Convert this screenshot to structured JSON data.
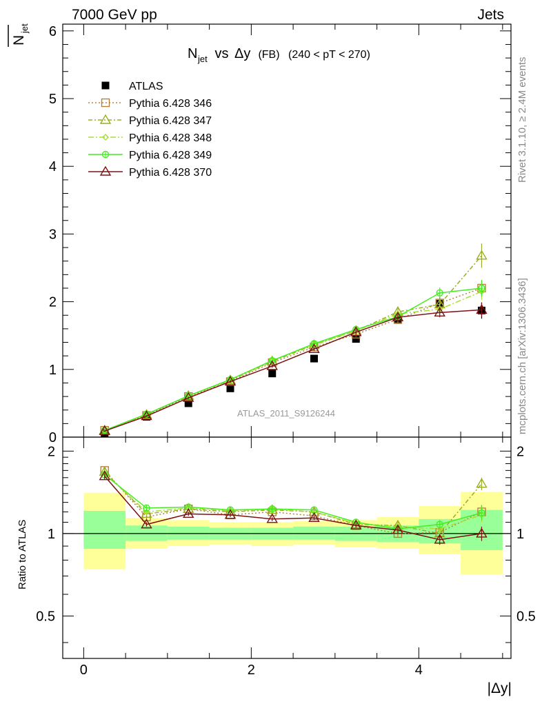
{
  "header": {
    "left": "7000 GeV pp",
    "right": "Jets"
  },
  "side_text": {
    "rivet": "Rivet 3.1.10, ≥ 2.4M events",
    "mcplots": "mcplots.cern.ch [arXiv:1306.3436]"
  },
  "colors": {
    "data": "#000000",
    "p346": "#b5803c",
    "p347": "#9aad22",
    "p348": "#a7e031",
    "p349": "#44ee22",
    "p370": "#7a1010",
    "band_outer": "#ffff99",
    "band_inner": "#99ff99"
  },
  "chart_data": [
    {
      "type": "line",
      "title": {
        "main": "N",
        "sub": "jet",
        "vs": " vs ",
        "delta": "Δy",
        "fb": " (FB) ",
        "cut": "(240 < pT < 270)"
      },
      "ylabel": {
        "main": "N",
        "sub": "jet"
      },
      "watermark": "ATLAS_2011_S9126244",
      "xlim": [
        -0.25,
        5.1
      ],
      "ylim": [
        0,
        6.1
      ],
      "yticks": [
        0,
        1,
        2,
        3,
        4,
        5,
        6
      ],
      "ytick_labels": [
        "0",
        "1",
        "2",
        "3",
        "4",
        "5",
        "6"
      ],
      "x": [
        0.25,
        0.75,
        1.25,
        1.75,
        2.25,
        2.75,
        3.25,
        3.75,
        4.25,
        4.75
      ],
      "data": {
        "name": "ATLAS",
        "values": [
          0.06,
          0.3,
          0.5,
          0.72,
          0.94,
          1.16,
          1.45,
          1.73,
          1.97,
          1.87
        ],
        "errors": [
          0.01,
          0.01,
          0.02,
          0.02,
          0.03,
          0.03,
          0.04,
          0.05,
          0.1,
          0.12
        ]
      },
      "series": [
        {
          "name": "Pythia 6.428 346",
          "key": "p346",
          "marker": "square",
          "dash": "2,3",
          "values": [
            0.1,
            0.32,
            0.6,
            0.82,
            1.1,
            1.33,
            1.52,
            1.74,
            1.98,
            2.2
          ],
          "errors": [
            0.005,
            0.01,
            0.015,
            0.02,
            0.025,
            0.03,
            0.04,
            0.05,
            0.08,
            0.12
          ]
        },
        {
          "name": "Pythia 6.428 347",
          "key": "p347",
          "marker": "triangle",
          "dash": "6,3,2,3",
          "values": [
            0.1,
            0.33,
            0.61,
            0.84,
            1.12,
            1.36,
            1.57,
            1.85,
            1.96,
            2.68
          ],
          "errors": [
            0.005,
            0.01,
            0.015,
            0.02,
            0.025,
            0.03,
            0.04,
            0.05,
            0.08,
            0.18
          ]
        },
        {
          "name": "Pythia 6.428 348",
          "key": "p348",
          "marker": "diamond",
          "dash": "8,3,2,3",
          "values": [
            0.1,
            0.34,
            0.61,
            0.85,
            1.13,
            1.37,
            1.57,
            1.82,
            1.89,
            2.15
          ],
          "errors": [
            0.005,
            0.01,
            0.015,
            0.02,
            0.025,
            0.03,
            0.04,
            0.05,
            0.08,
            0.12
          ]
        },
        {
          "name": "Pythia 6.428 349",
          "key": "p349",
          "marker": "circle",
          "dash": "",
          "values": [
            0.1,
            0.34,
            0.61,
            0.85,
            1.13,
            1.38,
            1.59,
            1.78,
            2.13,
            2.2
          ],
          "errors": [
            0.005,
            0.01,
            0.015,
            0.02,
            0.025,
            0.03,
            0.04,
            0.05,
            0.08,
            0.12
          ]
        },
        {
          "name": "Pythia 6.428 370",
          "key": "p370",
          "marker": "triangle",
          "dash": "",
          "values": [
            0.09,
            0.31,
            0.58,
            0.82,
            1.05,
            1.3,
            1.55,
            1.77,
            1.84,
            1.88
          ],
          "errors": [
            0.005,
            0.01,
            0.015,
            0.02,
            0.025,
            0.03,
            0.04,
            0.05,
            0.07,
            0.1
          ]
        }
      ]
    },
    {
      "type": "line",
      "ylabel": "Ratio to ATLAS",
      "xlabel": "|Δy|",
      "xlim": [
        -0.25,
        5.1
      ],
      "ylim": [
        0.35,
        2.25
      ],
      "yscale": "log",
      "yticks": [
        0.5,
        1,
        2
      ],
      "ytick_labels": [
        "0.5",
        "1",
        "2"
      ],
      "xticks": [
        0,
        2,
        4
      ],
      "xtick_labels": [
        "0",
        "2",
        "4"
      ],
      "bins": [
        [
          0,
          0.5
        ],
        [
          0.5,
          1
        ],
        [
          1,
          1.5
        ],
        [
          1.5,
          2
        ],
        [
          2,
          2.5
        ],
        [
          2.5,
          3
        ],
        [
          3,
          3.5
        ],
        [
          3.5,
          4
        ],
        [
          4,
          4.5
        ],
        [
          4.5,
          5
        ]
      ],
      "band_outer": [
        [
          0.74,
          1.41
        ],
        [
          0.88,
          1.14
        ],
        [
          0.9,
          1.12
        ],
        [
          0.91,
          1.1
        ],
        [
          0.9,
          1.1
        ],
        [
          0.91,
          1.11
        ],
        [
          0.89,
          1.12
        ],
        [
          0.88,
          1.15
        ],
        [
          0.84,
          1.26
        ],
        [
          0.71,
          1.42
        ]
      ],
      "band_inner": [
        [
          0.88,
          1.21
        ],
        [
          0.94,
          1.07
        ],
        [
          0.95,
          1.06
        ],
        [
          0.95,
          1.05
        ],
        [
          0.95,
          1.05
        ],
        [
          0.95,
          1.06
        ],
        [
          0.94,
          1.06
        ],
        [
          0.93,
          1.07
        ],
        [
          0.92,
          1.13
        ],
        [
          0.87,
          1.22
        ]
      ],
      "series": [
        {
          "key": "p346",
          "values": [
            1.7,
            1.15,
            1.23,
            1.17,
            1.2,
            1.16,
            1.07,
            1.0,
            1.01,
            1.2
          ],
          "errors": [
            0.04,
            0.02,
            0.02,
            0.02,
            0.02,
            0.02,
            0.02,
            0.03,
            0.04,
            0.07
          ]
        },
        {
          "key": "p347",
          "values": [
            1.68,
            1.18,
            1.23,
            1.2,
            1.22,
            1.2,
            1.08,
            1.07,
            1.0,
            1.52
          ],
          "errors": [
            0.05,
            0.02,
            0.02,
            0.02,
            0.02,
            0.02,
            0.02,
            0.03,
            0.04,
            0.08
          ]
        },
        {
          "key": "p348",
          "values": [
            1.66,
            1.2,
            1.24,
            1.21,
            1.23,
            1.2,
            1.09,
            1.06,
            1.04,
            1.17
          ],
          "errors": [
            0.04,
            0.02,
            0.02,
            0.02,
            0.02,
            0.02,
            0.02,
            0.03,
            0.04,
            0.07
          ]
        },
        {
          "key": "p349",
          "values": [
            1.64,
            1.24,
            1.25,
            1.22,
            1.23,
            1.22,
            1.1,
            1.04,
            1.08,
            1.19
          ],
          "errors": [
            0.04,
            0.02,
            0.02,
            0.02,
            0.02,
            0.02,
            0.02,
            0.03,
            0.04,
            0.07
          ]
        },
        {
          "key": "p370",
          "values": [
            1.62,
            1.08,
            1.18,
            1.17,
            1.13,
            1.14,
            1.07,
            1.03,
            0.95,
            1.0
          ],
          "errors": [
            0.04,
            0.02,
            0.02,
            0.02,
            0.02,
            0.02,
            0.02,
            0.03,
            0.04,
            0.06
          ]
        }
      ]
    }
  ]
}
